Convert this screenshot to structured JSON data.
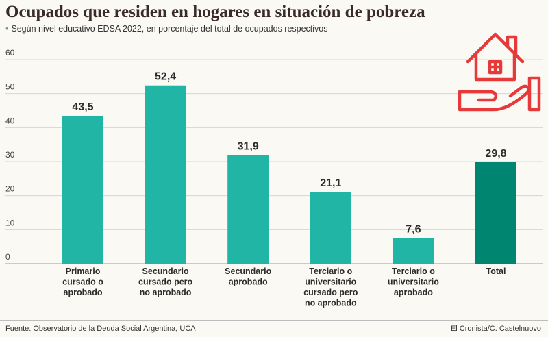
{
  "header": {
    "title": "Ocupados que residen en hogares en situación de pobreza",
    "bullet": "•",
    "subtitle": "Según nivel educativo EDSA 2022, en porcentaje del total de ocupados respectivos"
  },
  "footer": {
    "source": "Fuente: Observatorio de la Deuda Social Argentina, UCA",
    "credit": "El Cronista/C. Castelnuovo"
  },
  "icon": "house-in-hand-icon",
  "colors": {
    "bar": "#20b5a5",
    "bar_highlight": "#008571",
    "icon": "#e63a3a",
    "grid": "#d6d6d6"
  },
  "chart_data": {
    "type": "bar",
    "title": "Ocupados que residen en hogares en situación de pobreza",
    "xlabel": "",
    "ylabel": "",
    "ylim": [
      0,
      60
    ],
    "yticks": [
      0,
      10,
      20,
      30,
      40,
      50,
      60
    ],
    "grid": true,
    "categories": [
      [
        "Primario",
        "cursado o",
        "aprobado"
      ],
      [
        "Secundario",
        "cursado pero",
        "no aprobado"
      ],
      [
        "Secundario",
        "aprobado"
      ],
      [
        "Terciario o",
        "universitario",
        "cursado pero",
        "no aprobado"
      ],
      [
        "Terciario o",
        "universitario",
        "aprobado"
      ],
      [
        "Total"
      ]
    ],
    "values": [
      43.5,
      52.4,
      31.9,
      21.1,
      7.6,
      29.8
    ],
    "value_labels": [
      "43,5",
      "52,4",
      "31,9",
      "21,1",
      "7,6",
      "29,8"
    ],
    "highlight_index": 5
  }
}
